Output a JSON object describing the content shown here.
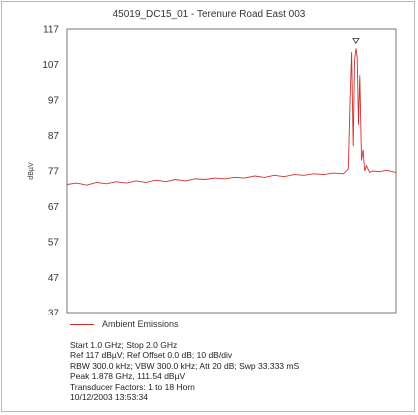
{
  "chart_data": {
    "type": "line",
    "title": "45019_DC15_01 - Terenure Road East 003",
    "ylabel": "dBµV",
    "ylim": [
      37,
      117
    ],
    "yticks": [
      117,
      107,
      97,
      87,
      77,
      67,
      57,
      47,
      37
    ],
    "xlim": [
      1.0,
      2.0
    ],
    "grid": false,
    "legend_position": "bottom-left",
    "series": [
      {
        "name": "Ambient Emissions",
        "color": "#d03030",
        "x": [
          1.0,
          1.03,
          1.06,
          1.09,
          1.12,
          1.15,
          1.18,
          1.21,
          1.24,
          1.27,
          1.3,
          1.33,
          1.36,
          1.39,
          1.42,
          1.45,
          1.48,
          1.51,
          1.54,
          1.57,
          1.6,
          1.63,
          1.66,
          1.69,
          1.72,
          1.75,
          1.78,
          1.81,
          1.84,
          1.855,
          1.86,
          1.865,
          1.87,
          1.874,
          1.878,
          1.882,
          1.886,
          1.89,
          1.895,
          1.9,
          1.905,
          1.91,
          1.92,
          1.93,
          1.95,
          1.97,
          2.0
        ],
        "y": [
          73.2,
          73.6,
          73.0,
          73.8,
          73.4,
          74.0,
          73.6,
          74.2,
          73.8,
          74.4,
          74.0,
          74.6,
          74.2,
          74.8,
          74.6,
          75.0,
          74.8,
          75.2,
          75.0,
          75.6,
          75.2,
          75.8,
          75.4,
          76.0,
          75.8,
          76.2,
          76.0,
          76.4,
          76.2,
          77.5,
          95.0,
          110.5,
          84.0,
          108.0,
          111.54,
          109.0,
          90.0,
          104.0,
          80.0,
          83.0,
          77.0,
          78.5,
          76.6,
          77.0,
          76.8,
          77.2,
          76.6
        ]
      }
    ],
    "peak": {
      "x": 1.878,
      "y": 111.54,
      "marker": "triangle-down"
    }
  },
  "legend": {
    "label": "Ambient Emissions"
  },
  "info": {
    "line1": "Start 1.0 GHz; Stop 2.0 GHz",
    "line2": "Ref 117 dBµV; Ref Offset 0.0 dB; 10 dB/div",
    "line3": "RBW 300.0 kHz; VBW 300.0 kHz; Att 20 dB; Swp 33.333 mS",
    "line4": "Peak 1.878 GHz, 111.54 dBµV",
    "line5": "Transducer Factors: 1 to 18 Horn",
    "line6": "10/12/2003 13:53:34"
  }
}
